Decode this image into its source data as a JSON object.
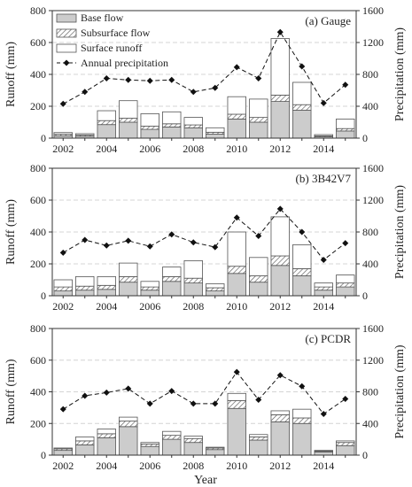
{
  "legend": {
    "base": "Base flow",
    "subsurface": "Subsurface flow",
    "surface": "Surface runoff",
    "precip": "Annual precipitation"
  },
  "x_axis_label": "Year",
  "left_axis_label": "Runoff (mm)",
  "right_axis_label": "Precipitation (mm)",
  "colors": {
    "base_fill": "#cccccc",
    "subsurface_fill": "hatched-grey",
    "surface_fill": "#ffffff",
    "outline": "#555555",
    "precip_line": "#111111",
    "grid": "#d4d4d4"
  },
  "chart_data": [
    {
      "type": "bar",
      "stacked": true,
      "secondary_type": "line",
      "title": "(a) Gauge",
      "categories": [
        "2002",
        "2003",
        "2004",
        "2005",
        "2006",
        "2007",
        "2008",
        "2009",
        "2010",
        "2011",
        "2012",
        "2013",
        "2014",
        "2015"
      ],
      "x_tick_labels": [
        "2002",
        "2004",
        "2006",
        "2008",
        "2010",
        "2012",
        "2014"
      ],
      "ylim": [
        0,
        800
      ],
      "y_ticks": [
        0,
        200,
        400,
        600,
        800
      ],
      "y2lim": [
        0,
        1600
      ],
      "y2_ticks": [
        0,
        400,
        800,
        1200,
        1600
      ],
      "grid": true,
      "legend_position": "top-left",
      "series": [
        {
          "name": "Base flow",
          "values": [
            15,
            12,
            85,
            100,
            55,
            70,
            65,
            25,
            120,
            100,
            230,
            175,
            8,
            45
          ]
        },
        {
          "name": "Subsurface flow",
          "values": [
            10,
            8,
            25,
            25,
            20,
            20,
            18,
            12,
            30,
            30,
            40,
            35,
            6,
            15
          ]
        },
        {
          "name": "Surface runoff",
          "values": [
            10,
            8,
            62,
            110,
            78,
            75,
            47,
            28,
            110,
            115,
            355,
            140,
            8,
            60
          ]
        }
      ],
      "line_series": {
        "name": "Annual precipitation",
        "axis": "right",
        "values": [
          430,
          580,
          750,
          730,
          720,
          730,
          580,
          630,
          890,
          750,
          1330,
          900,
          440,
          670
        ]
      }
    },
    {
      "type": "bar",
      "stacked": true,
      "secondary_type": "line",
      "title": "(b) 3B42V7",
      "categories": [
        "2002",
        "2003",
        "2004",
        "2005",
        "2006",
        "2007",
        "2008",
        "2009",
        "2010",
        "2011",
        "2012",
        "2013",
        "2014",
        "2015"
      ],
      "x_tick_labels": [
        "2002",
        "2004",
        "2006",
        "2008",
        "2010",
        "2012",
        "2014"
      ],
      "ylim": [
        0,
        800
      ],
      "y_ticks": [
        0,
        200,
        400,
        600,
        800
      ],
      "y2lim": [
        0,
        1600
      ],
      "y2_ticks": [
        0,
        400,
        800,
        1200,
        1600
      ],
      "grid": true,
      "series": [
        {
          "name": "Base flow",
          "values": [
            30,
            35,
            40,
            85,
            35,
            90,
            80,
            30,
            140,
            85,
            190,
            125,
            35,
            55
          ]
        },
        {
          "name": "Subsurface flow",
          "values": [
            25,
            25,
            25,
            35,
            20,
            30,
            30,
            20,
            45,
            40,
            60,
            45,
            20,
            25
          ]
        },
        {
          "name": "Surface runoff",
          "values": [
            45,
            60,
            55,
            85,
            35,
            60,
            110,
            25,
            215,
            115,
            245,
            150,
            25,
            50
          ]
        }
      ],
      "line_series": {
        "name": "Annual precipitation",
        "axis": "right",
        "values": [
          540,
          700,
          630,
          690,
          620,
          770,
          670,
          610,
          980,
          750,
          1090,
          800,
          450,
          660
        ]
      }
    },
    {
      "type": "bar",
      "stacked": true,
      "secondary_type": "line",
      "title": "(c) PCDR",
      "categories": [
        "2002",
        "2003",
        "2004",
        "2005",
        "2006",
        "2007",
        "2008",
        "2009",
        "2010",
        "2011",
        "2012",
        "2013",
        "2014",
        "2015"
      ],
      "x_tick_labels": [
        "2002",
        "2004",
        "2006",
        "2008",
        "2010",
        "2012",
        "2014"
      ],
      "ylim": [
        0,
        800
      ],
      "y_ticks": [
        0,
        200,
        400,
        600,
        800
      ],
      "y2lim": [
        0,
        1600
      ],
      "y2_ticks": [
        0,
        400,
        800,
        1200,
        1600
      ],
      "grid": true,
      "series": [
        {
          "name": "Base flow",
          "values": [
            30,
            65,
            110,
            180,
            55,
            100,
            80,
            35,
            295,
            95,
            210,
            200,
            20,
            60
          ]
        },
        {
          "name": "Subsurface flow",
          "values": [
            10,
            25,
            25,
            35,
            15,
            25,
            25,
            10,
            50,
            20,
            45,
            35,
            5,
            20
          ]
        },
        {
          "name": "Surface runoff",
          "values": [
            5,
            25,
            30,
            25,
            10,
            25,
            15,
            5,
            45,
            15,
            25,
            55,
            5,
            10
          ]
        }
      ],
      "line_series": {
        "name": "Annual precipitation",
        "axis": "right",
        "values": [
          580,
          750,
          790,
          840,
          650,
          810,
          650,
          650,
          1050,
          700,
          1010,
          870,
          520,
          710
        ]
      }
    }
  ]
}
